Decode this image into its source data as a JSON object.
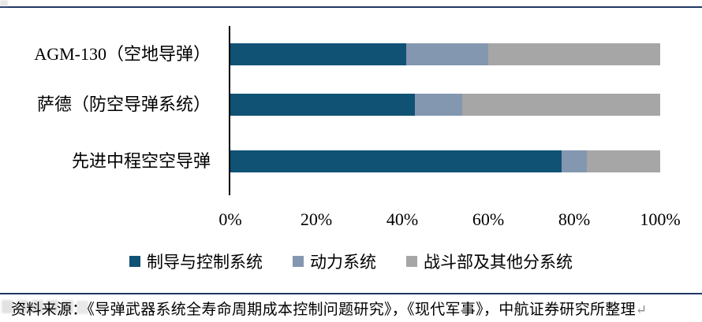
{
  "chart_data": {
    "type": "bar",
    "orientation": "horizontal",
    "stacked": true,
    "unit": "percent",
    "categories": [
      "AGM-130（空地导弹）",
      "萨德（防空导弹系统）",
      "先进中程空空导弹"
    ],
    "series": [
      {
        "name": "制导与控制系统",
        "color": "#0F5274",
        "values": [
          41,
          43,
          77
        ]
      },
      {
        "name": "动力系统",
        "color": "#8497B0",
        "values": [
          19,
          11,
          6
        ]
      },
      {
        "name": "战斗部及其他分系统",
        "color": "#A6A6A6",
        "values": [
          40,
          46,
          17
        ]
      }
    ],
    "x_axis": {
      "min": 0,
      "max": 100,
      "ticks": [
        "0%",
        "20%",
        "40%",
        "60%",
        "80%",
        "100%"
      ]
    },
    "legend_position": "bottom",
    "gridlines": false
  },
  "footer": {
    "source_text": "资料来源：《导弹武器系统全寿命周期成本控制问题研究》，《现代军事》，中航证券研究所整理",
    "return_mark": "↵"
  },
  "colors": {
    "accent_rule": "#1F3864",
    "axis_line": "#000000",
    "background": "#FFFFFF"
  }
}
